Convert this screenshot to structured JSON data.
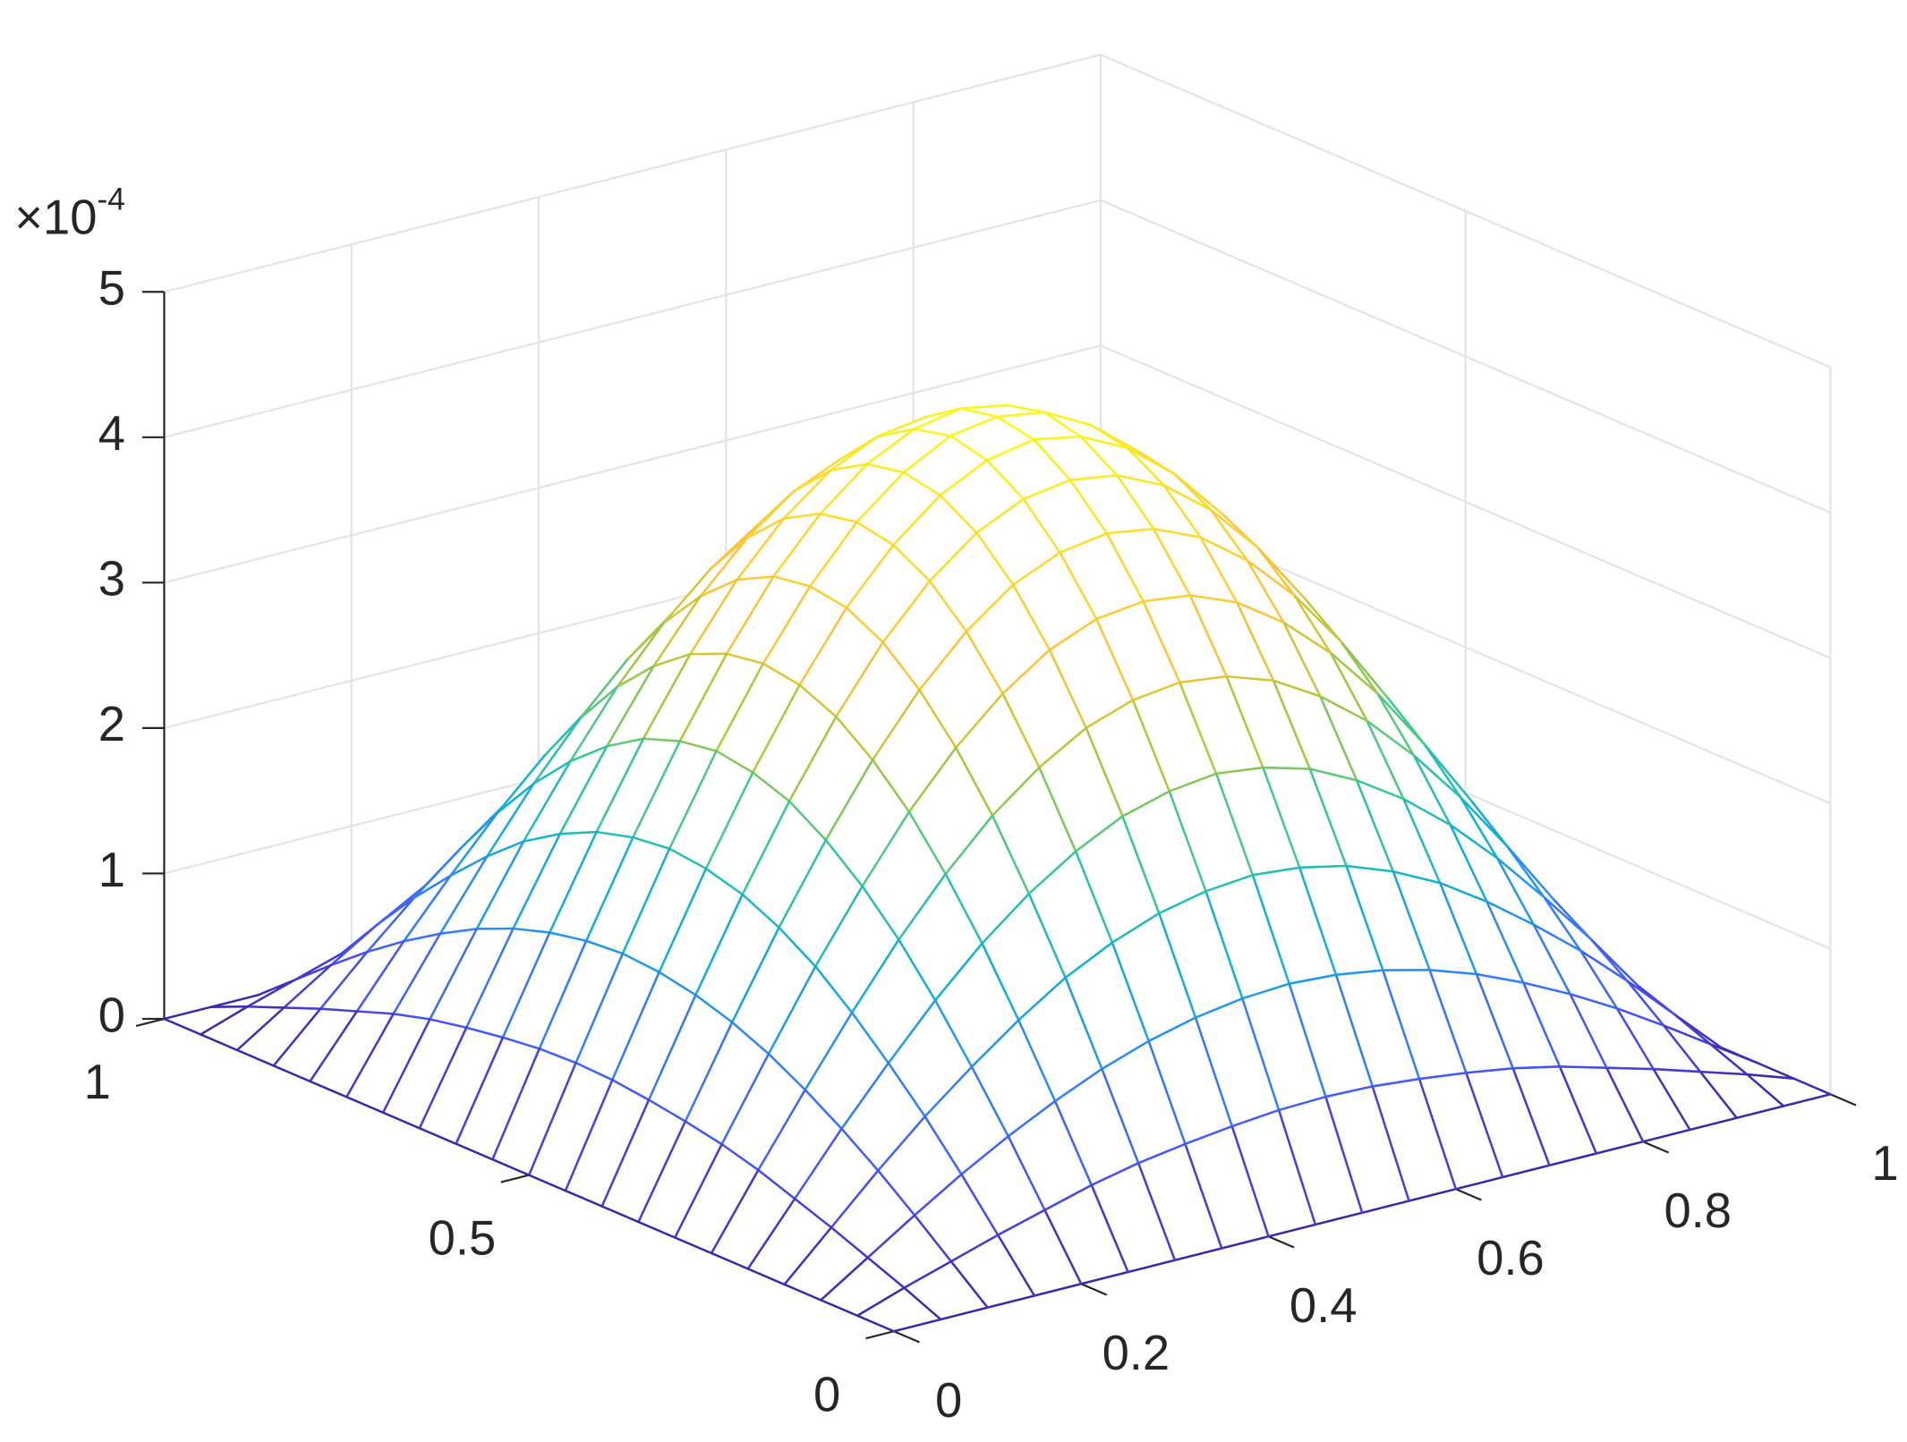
{
  "chart_data": {
    "type": "mesh",
    "x": [
      0,
      0.05,
      0.1,
      0.15,
      0.2,
      0.25,
      0.3,
      0.35,
      0.4,
      0.45,
      0.5,
      0.55,
      0.6,
      0.65,
      0.7,
      0.75,
      0.8,
      0.85,
      0.9,
      0.95,
      1
    ],
    "y": [
      0,
      0.05,
      0.1,
      0.15,
      0.2,
      0.25,
      0.3,
      0.35,
      0.4,
      0.45,
      0.5,
      0.55,
      0.6,
      0.65,
      0.7,
      0.75,
      0.8,
      0.85,
      0.9,
      0.95,
      1
    ],
    "z": [
      [
        0,
        0,
        0,
        0,
        0,
        0,
        0,
        0,
        0,
        0,
        0,
        0,
        0,
        0,
        0,
        0,
        0,
        0,
        0,
        0,
        0
      ],
      [
        0,
        0.11,
        0.21,
        0.31,
        0.4,
        0.49,
        0.56,
        0.61,
        0.65,
        0.68,
        0.69,
        0.68,
        0.65,
        0.61,
        0.56,
        0.49,
        0.4,
        0.31,
        0.21,
        0.11,
        0
      ],
      [
        0,
        0.21,
        0.42,
        0.62,
        0.8,
        0.96,
        1.1,
        1.21,
        1.29,
        1.34,
        1.36,
        1.34,
        1.29,
        1.21,
        1.1,
        0.96,
        0.8,
        0.62,
        0.42,
        0.21,
        0
      ],
      [
        0,
        0.31,
        0.62,
        0.91,
        1.17,
        1.41,
        1.62,
        1.78,
        1.9,
        1.97,
        2.0,
        1.97,
        1.9,
        1.78,
        1.62,
        1.41,
        1.17,
        0.91,
        0.62,
        0.31,
        0
      ],
      [
        0,
        0.4,
        0.8,
        1.17,
        1.52,
        1.83,
        2.09,
        2.3,
        2.46,
        2.55,
        2.59,
        2.55,
        2.46,
        2.3,
        2.09,
        1.83,
        1.52,
        1.17,
        0.8,
        0.4,
        0
      ],
      [
        0,
        0.49,
        0.96,
        1.41,
        1.83,
        2.2,
        2.52,
        2.77,
        2.96,
        3.07,
        3.11,
        3.07,
        2.96,
        2.77,
        2.52,
        2.2,
        1.83,
        1.41,
        0.96,
        0.49,
        0
      ],
      [
        0,
        0.56,
        1.1,
        1.62,
        2.09,
        2.52,
        2.88,
        3.17,
        3.39,
        3.52,
        3.56,
        3.52,
        3.39,
        3.17,
        2.88,
        2.52,
        2.09,
        1.62,
        1.1,
        0.56,
        0
      ],
      [
        0,
        0.61,
        1.21,
        1.78,
        2.3,
        2.77,
        3.17,
        3.49,
        3.73,
        3.87,
        3.92,
        3.87,
        3.73,
        3.49,
        3.17,
        2.77,
        2.3,
        1.78,
        1.21,
        0.61,
        0
      ],
      [
        0,
        0.65,
        1.29,
        1.9,
        2.46,
        2.96,
        3.39,
        3.73,
        3.98,
        4.13,
        4.18,
        4.13,
        3.98,
        3.73,
        3.39,
        2.96,
        2.46,
        1.9,
        1.29,
        0.65,
        0
      ],
      [
        0,
        0.68,
        1.34,
        1.97,
        2.55,
        3.07,
        3.52,
        3.87,
        4.13,
        4.29,
        4.35,
        4.29,
        4.13,
        3.87,
        3.52,
        3.07,
        2.55,
        1.97,
        1.34,
        0.68,
        0
      ],
      [
        0,
        0.69,
        1.36,
        2.0,
        2.59,
        3.11,
        3.56,
        3.92,
        4.18,
        4.35,
        4.4,
        4.35,
        4.18,
        3.92,
        3.56,
        3.11,
        2.59,
        2.0,
        1.36,
        0.69,
        0
      ],
      [
        0,
        0.68,
        1.34,
        1.97,
        2.55,
        3.07,
        3.52,
        3.87,
        4.13,
        4.29,
        4.35,
        4.29,
        4.13,
        3.87,
        3.52,
        3.07,
        2.55,
        1.97,
        1.34,
        0.68,
        0
      ],
      [
        0,
        0.65,
        1.29,
        1.9,
        2.46,
        2.96,
        3.39,
        3.73,
        3.98,
        4.13,
        4.18,
        4.13,
        3.98,
        3.73,
        3.39,
        2.96,
        2.46,
        1.9,
        1.29,
        0.65,
        0
      ],
      [
        0,
        0.61,
        1.21,
        1.78,
        2.3,
        2.77,
        3.17,
        3.49,
        3.73,
        3.87,
        3.92,
        3.87,
        3.73,
        3.49,
        3.17,
        2.77,
        2.3,
        1.78,
        1.21,
        0.61,
        0
      ],
      [
        0,
        0.56,
        1.1,
        1.62,
        2.09,
        2.52,
        2.88,
        3.17,
        3.39,
        3.52,
        3.56,
        3.52,
        3.39,
        3.17,
        2.88,
        2.52,
        2.09,
        1.62,
        1.1,
        0.56,
        0
      ],
      [
        0,
        0.49,
        0.96,
        1.41,
        1.83,
        2.2,
        2.52,
        2.77,
        2.96,
        3.07,
        3.11,
        3.07,
        2.96,
        2.77,
        2.52,
        2.2,
        1.83,
        1.41,
        0.96,
        0.49,
        0
      ],
      [
        0,
        0.4,
        0.8,
        1.17,
        1.52,
        1.83,
        2.09,
        2.3,
        2.46,
        2.55,
        2.59,
        2.55,
        2.46,
        2.3,
        2.09,
        1.83,
        1.52,
        1.17,
        0.8,
        0.4,
        0
      ],
      [
        0,
        0.31,
        0.62,
        0.91,
        1.17,
        1.41,
        1.62,
        1.78,
        1.9,
        1.97,
        2.0,
        1.97,
        1.9,
        1.78,
        1.62,
        1.41,
        1.17,
        0.91,
        0.62,
        0.31,
        0
      ],
      [
        0,
        0.21,
        0.42,
        0.62,
        0.8,
        0.96,
        1.1,
        1.21,
        1.29,
        1.34,
        1.36,
        1.34,
        1.29,
        1.21,
        1.1,
        0.96,
        0.8,
        0.62,
        0.42,
        0.21,
        0
      ],
      [
        0,
        0.11,
        0.21,
        0.31,
        0.4,
        0.49,
        0.56,
        0.61,
        0.65,
        0.68,
        0.69,
        0.68,
        0.65,
        0.61,
        0.56,
        0.49,
        0.4,
        0.31,
        0.21,
        0.11,
        0
      ],
      [
        0,
        0,
        0,
        0,
        0,
        0,
        0,
        0,
        0,
        0,
        0,
        0,
        0,
        0,
        0,
        0,
        0,
        0,
        0,
        0,
        0
      ]
    ],
    "xlim": [
      0,
      1
    ],
    "xticks": [
      0,
      0.2,
      0.4,
      0.6,
      0.8,
      1
    ],
    "ylim": [
      0,
      1
    ],
    "yticks": [
      0,
      0.5,
      1
    ],
    "zlim": [
      0,
      5
    ],
    "zticks": [
      0,
      1,
      2,
      3,
      4,
      5
    ],
    "z_exponent": {
      "base": "×10",
      "power": "-4"
    },
    "colormap": "parula",
    "grid": true
  }
}
